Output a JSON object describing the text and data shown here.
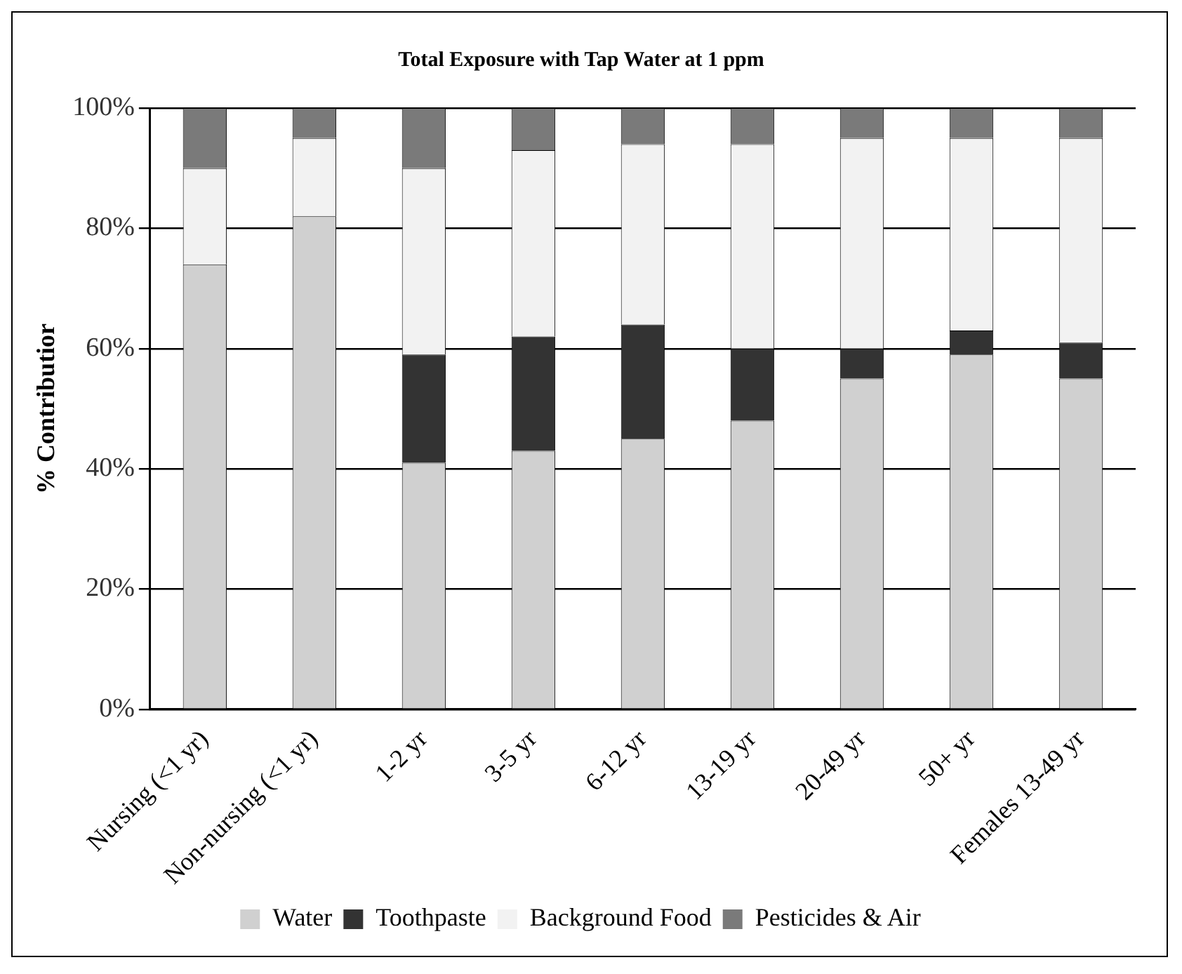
{
  "chart_data": {
    "type": "bar",
    "title": "Total Exposure with Tap Water at 1 ppm",
    "ylabel": "% Contributior",
    "categories": [
      "Nursing (<1 yr)",
      "Non-nursing (<1 yr)",
      "1-2 yr",
      "3-5 yr",
      "6-12 yr",
      "13-19 yr",
      "20-49 yr",
      "50+ yr",
      "Females 13-49 yr"
    ],
    "stacked": true,
    "series": [
      {
        "name": "Water",
        "color": "#d0d0d0",
        "values": [
          74,
          82,
          41,
          43,
          45,
          48,
          55,
          59,
          55
        ]
      },
      {
        "name": "Toothpaste",
        "color": "#333333",
        "values": [
          0,
          0,
          18,
          19,
          19,
          12,
          5,
          4,
          6
        ]
      },
      {
        "name": "Background Food",
        "color": "#f2f2f2",
        "values": [
          16,
          13,
          31,
          31,
          30,
          34,
          35,
          32,
          34
        ]
      },
      {
        "name": "Pesticides & Air",
        "color": "#7a7a7a",
        "values": [
          10,
          5,
          10,
          7,
          6,
          6,
          5,
          5,
          5
        ]
      }
    ],
    "ylim": [
      0,
      100
    ],
    "yticks": [
      {
        "value": 0,
        "label": "0%"
      },
      {
        "value": 20,
        "label": "20%"
      },
      {
        "value": 40,
        "label": "40%"
      },
      {
        "value": 60,
        "label": "60%"
      },
      {
        "value": 80,
        "label": "80%"
      },
      {
        "value": 100,
        "label": "100%"
      }
    ],
    "grid": "y",
    "legend": "bottom"
  }
}
